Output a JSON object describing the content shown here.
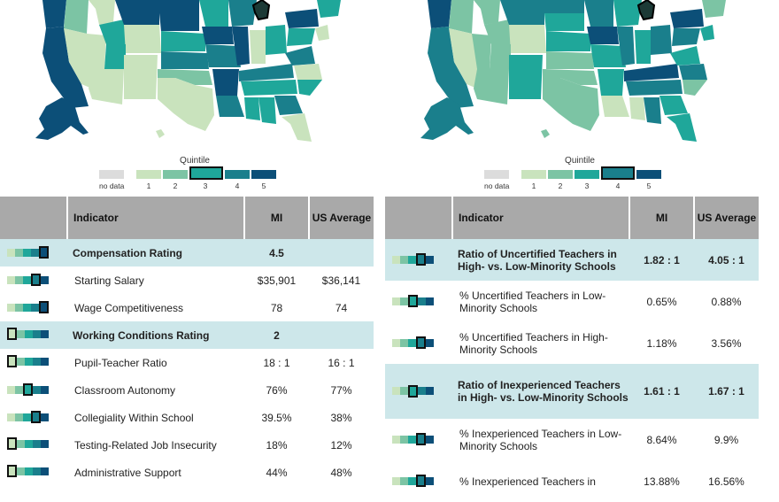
{
  "colors": {
    "q1": "#c9e3bd",
    "q2": "#7cc4a4",
    "q3": "#1fa79a",
    "q4": "#1a7f8c",
    "q5": "#0c4f78",
    "nodata": "#dcdcdc",
    "highlight_row": "#cde7ea",
    "header": "#a9a9a9",
    "selected_state": "#1c3a36"
  },
  "left": {
    "legend": {
      "title": "Quintile",
      "no_data": "no data",
      "labels": [
        "1",
        "2",
        "3",
        "4",
        "5"
      ],
      "selected": 3
    },
    "table": {
      "headers": {
        "indicator": "Indicator",
        "mi": "MI",
        "us": "US Average"
      },
      "rows": [
        {
          "label": "Compensation Rating",
          "mi": "4.5",
          "us": "",
          "quintile": 5,
          "highlight": true
        },
        {
          "label": "Starting Salary",
          "mi": "$35,901",
          "us": "$36,141",
          "quintile": 4,
          "highlight": false
        },
        {
          "label": "Wage Competitiveness",
          "mi": "78",
          "us": "74",
          "quintile": 5,
          "highlight": false
        },
        {
          "label": "Working Conditions Rating",
          "mi": "2",
          "us": "",
          "quintile": 1,
          "highlight": true
        },
        {
          "label": "Pupil-Teacher Ratio",
          "mi": "18 : 1",
          "us": "16 : 1",
          "quintile": 1,
          "highlight": false
        },
        {
          "label": "Classroom Autonomy",
          "mi": "76%",
          "us": "77%",
          "quintile": 3,
          "highlight": false
        },
        {
          "label": "Collegiality Within School",
          "mi": "39.5%",
          "us": "38%",
          "quintile": 4,
          "highlight": false
        },
        {
          "label": "Testing-Related Job Insecurity",
          "mi": "18%",
          "us": "12%",
          "quintile": 1,
          "highlight": false
        },
        {
          "label": "Administrative Support",
          "mi": "44%",
          "us": "48%",
          "quintile": 1,
          "highlight": false
        }
      ]
    }
  },
  "right": {
    "legend": {
      "title": "Quintile",
      "no_data": "no data",
      "labels": [
        "1",
        "2",
        "3",
        "4",
        "5"
      ],
      "selected": 4
    },
    "table": {
      "headers": {
        "indicator": "Indicator",
        "mi": "MI",
        "us": "US Average"
      },
      "rows": [
        {
          "label": "Ratio of Uncertified Teachers in High- vs. Low-Minority Schools",
          "mi": "1.82 : 1",
          "us": "4.05 : 1",
          "quintile": 4,
          "highlight": true
        },
        {
          "label": "% Uncertified Teachers in Low-Minority Schools",
          "mi": "0.65%",
          "us": "0.88%",
          "quintile": 3,
          "highlight": false
        },
        {
          "label": "% Uncertified Teachers in High-Minority Schools",
          "mi": "1.18%",
          "us": "3.56%",
          "quintile": 4,
          "highlight": false
        },
        {
          "label": "Ratio of Inexperienced Teachers in High- vs. Low-Minority Schools",
          "mi": "1.61 : 1",
          "us": "1.67 : 1",
          "quintile": 3,
          "highlight": true
        },
        {
          "label": "% Inexperienced Teachers in Low-Minority Schools",
          "mi": "8.64%",
          "us": "9.9%",
          "quintile": 4,
          "highlight": false
        },
        {
          "label": "% Inexperienced Teachers in",
          "mi": "13.88%",
          "us": "16.56%",
          "quintile": 4,
          "highlight": false
        }
      ]
    }
  }
}
